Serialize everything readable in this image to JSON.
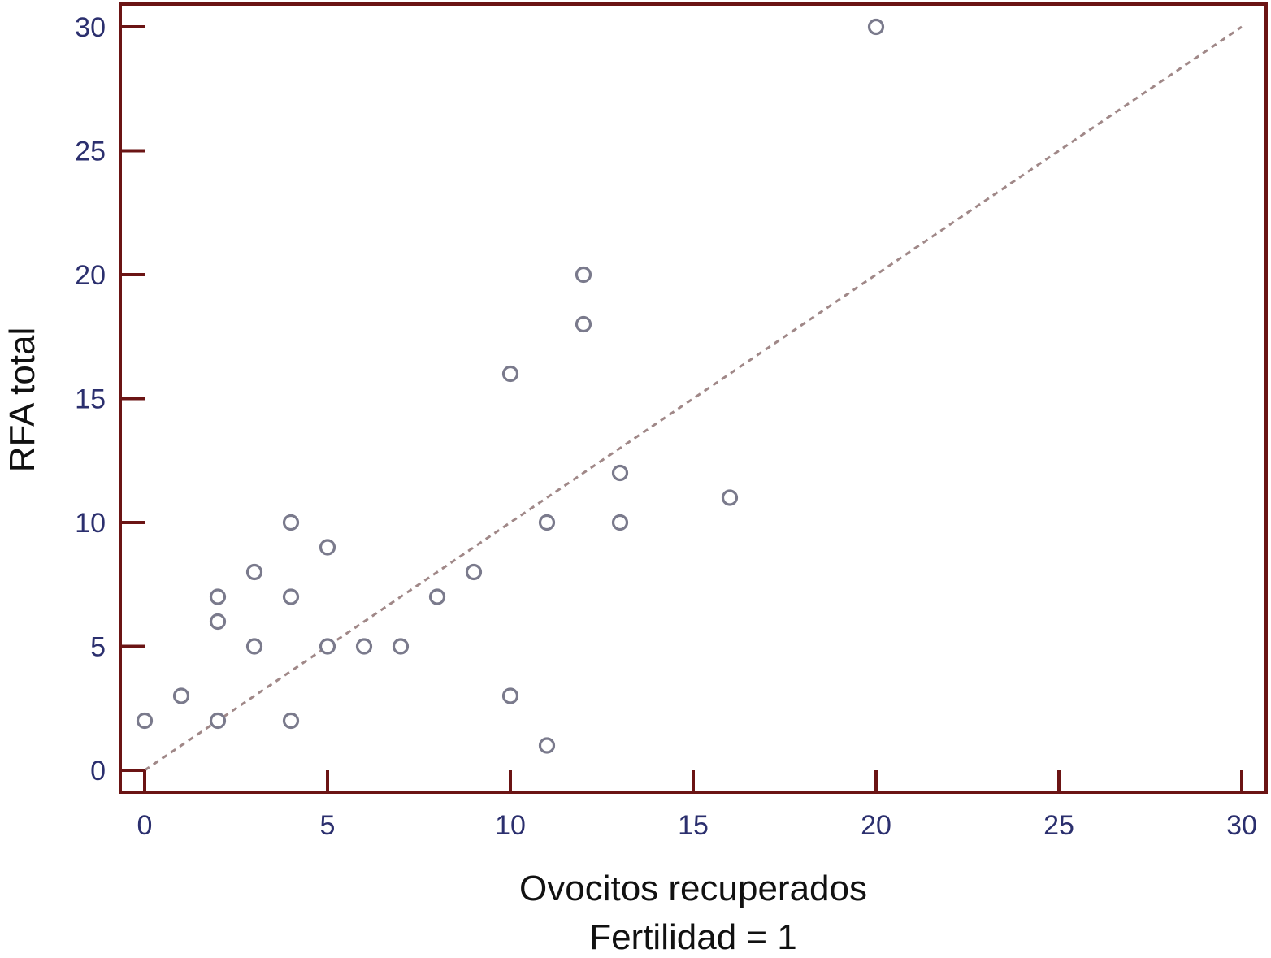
{
  "chart_data": {
    "type": "scatter",
    "xlabel": "Ovocitos recuperados",
    "xlabel_sub": "Fertilidad = 1",
    "ylabel": "RFA total",
    "xlim": [
      0,
      30
    ],
    "ylim": [
      0,
      30
    ],
    "x_ticks": [
      0,
      5,
      10,
      15,
      20,
      25,
      30
    ],
    "y_ticks": [
      0,
      5,
      10,
      15,
      20,
      25,
      30
    ],
    "grid": false,
    "reference_line": {
      "style": "dashed",
      "from": [
        0,
        0
      ],
      "to": [
        30,
        30
      ]
    },
    "points": [
      {
        "x": 0,
        "y": 2
      },
      {
        "x": 1,
        "y": 3
      },
      {
        "x": 2,
        "y": 2
      },
      {
        "x": 2,
        "y": 6
      },
      {
        "x": 2,
        "y": 7
      },
      {
        "x": 3,
        "y": 5
      },
      {
        "x": 3,
        "y": 8
      },
      {
        "x": 4,
        "y": 2
      },
      {
        "x": 4,
        "y": 7
      },
      {
        "x": 4,
        "y": 10
      },
      {
        "x": 5,
        "y": 5
      },
      {
        "x": 5,
        "y": 9
      },
      {
        "x": 6,
        "y": 5
      },
      {
        "x": 7,
        "y": 5
      },
      {
        "x": 8,
        "y": 7
      },
      {
        "x": 9,
        "y": 8
      },
      {
        "x": 10,
        "y": 3
      },
      {
        "x": 10,
        "y": 16
      },
      {
        "x": 11,
        "y": 1
      },
      {
        "x": 11,
        "y": 10
      },
      {
        "x": 12,
        "y": 18
      },
      {
        "x": 12,
        "y": 20
      },
      {
        "x": 13,
        "y": 10
      },
      {
        "x": 13,
        "y": 12
      },
      {
        "x": 16,
        "y": 11
      },
      {
        "x": 20,
        "y": 30
      }
    ],
    "colors": {
      "frame": "#6b1414",
      "tick_label": "#2b2f6e",
      "marker": "#7a7a8c",
      "reference_line": "#a08888"
    }
  }
}
